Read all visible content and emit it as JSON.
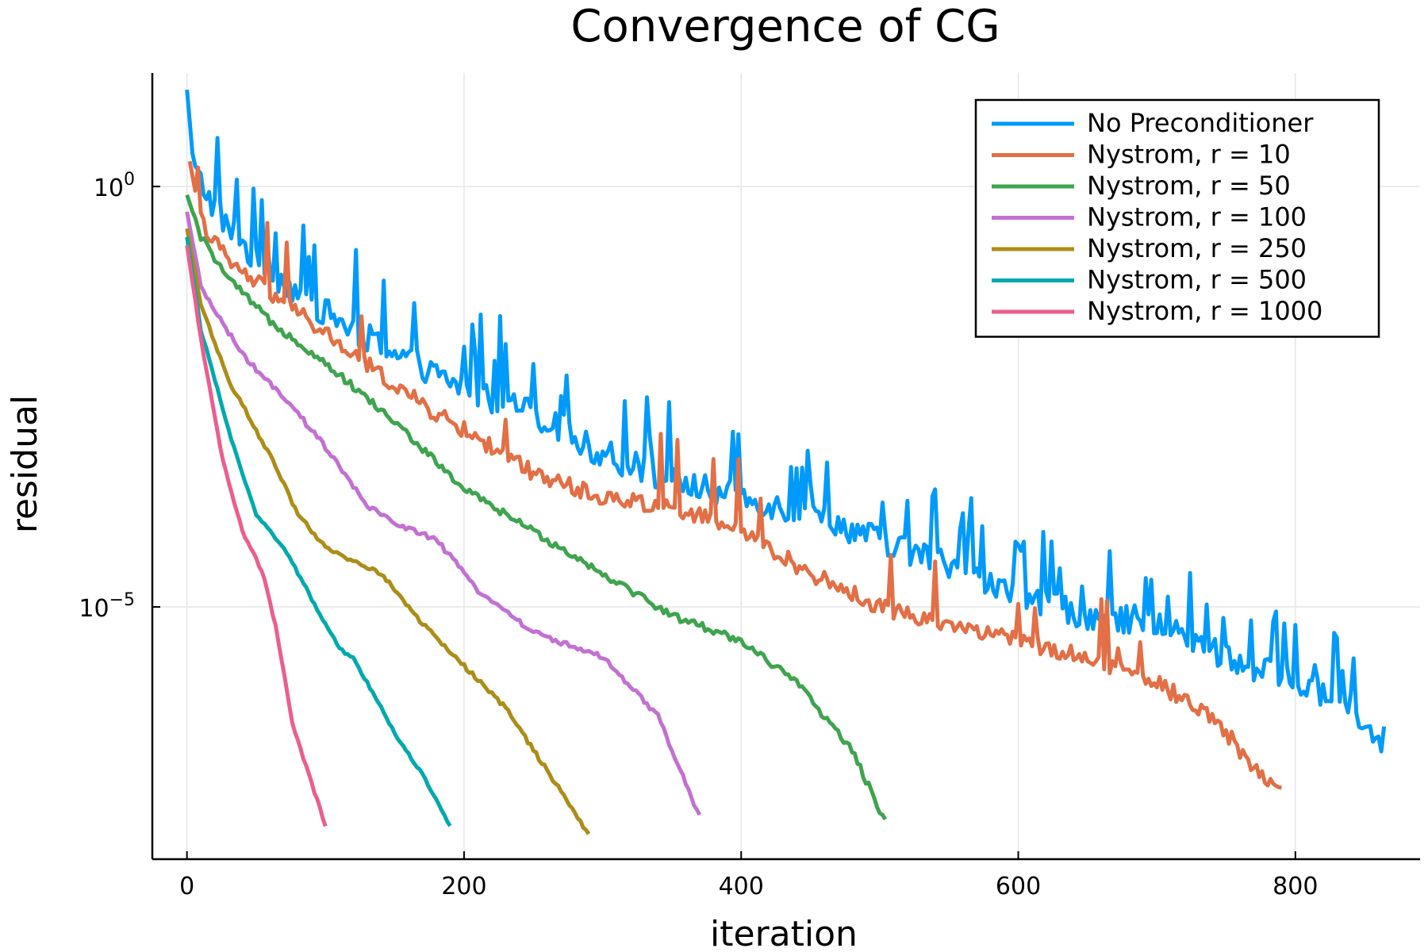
{
  "chart_data": {
    "type": "line",
    "title": "Convergence of CG",
    "xlabel": "iteration",
    "ylabel": "residual",
    "y_scale": "log10",
    "xlim": [
      -25,
      890
    ],
    "ylim_exponent": [
      -8.0,
      1.35
    ],
    "xticks": [
      0,
      200,
      400,
      600,
      800
    ],
    "xtick_labels": [
      "0",
      "200",
      "400",
      "600",
      "800"
    ],
    "yticks": [
      0,
      -5
    ],
    "ytick_labels": [
      {
        "base": "10",
        "exp": "0"
      },
      {
        "base": "10",
        "exp": "−5"
      }
    ],
    "grid": true,
    "legend_position": "top-right",
    "series": [
      {
        "name": "No Preconditioner",
        "color": "#009AFA",
        "points": [
          [
            0,
            1.15
          ],
          [
            5,
            0.2
          ],
          [
            20,
            -0.25
          ],
          [
            50,
            -0.9
          ],
          [
            100,
            -1.5
          ],
          [
            150,
            -2.0
          ],
          [
            200,
            -2.4
          ],
          [
            250,
            -2.7
          ],
          [
            300,
            -3.2
          ],
          [
            350,
            -3.5
          ],
          [
            400,
            -3.7
          ],
          [
            450,
            -3.9
          ],
          [
            500,
            -4.2
          ],
          [
            550,
            -4.5
          ],
          [
            600,
            -4.9
          ],
          [
            650,
            -5.1
          ],
          [
            700,
            -5.2
          ],
          [
            750,
            -5.6
          ],
          [
            800,
            -5.9
          ],
          [
            840,
            -6.2
          ],
          [
            865,
            -6.6
          ]
        ]
      },
      {
        "name": "Nystrom, r = 10",
        "color": "#E26F46",
        "points": [
          [
            2,
            0.3
          ],
          [
            10,
            -0.4
          ],
          [
            30,
            -0.9
          ],
          [
            80,
            -1.5
          ],
          [
            120,
            -2.0
          ],
          [
            170,
            -2.6
          ],
          [
            200,
            -2.9
          ],
          [
            250,
            -3.4
          ],
          [
            300,
            -3.7
          ],
          [
            350,
            -3.8
          ],
          [
            400,
            -4.1
          ],
          [
            450,
            -4.6
          ],
          [
            500,
            -5.0
          ],
          [
            550,
            -5.2
          ],
          [
            600,
            -5.4
          ],
          [
            650,
            -5.6
          ],
          [
            700,
            -5.9
          ],
          [
            740,
            -6.3
          ],
          [
            770,
            -6.9
          ],
          [
            790,
            -7.2
          ]
        ]
      },
      {
        "name": "Nystrom, r = 50",
        "color": "#3EA44E",
        "points": [
          [
            0,
            -0.1
          ],
          [
            10,
            -0.6
          ],
          [
            30,
            -1.1
          ],
          [
            60,
            -1.6
          ],
          [
            100,
            -2.1
          ],
          [
            150,
            -2.8
          ],
          [
            200,
            -3.6
          ],
          [
            260,
            -4.2
          ],
          [
            300,
            -4.6
          ],
          [
            350,
            -5.1
          ],
          [
            400,
            -5.4
          ],
          [
            440,
            -5.9
          ],
          [
            480,
            -6.7
          ],
          [
            505,
            -7.6
          ]
        ]
      },
      {
        "name": "Nystrom, r = 100",
        "color": "#C271D2",
        "points": [
          [
            0,
            -0.3
          ],
          [
            10,
            -1.2
          ],
          [
            40,
            -2.0
          ],
          [
            80,
            -2.7
          ],
          [
            100,
            -3.1
          ],
          [
            130,
            -3.8
          ],
          [
            150,
            -4.0
          ],
          [
            180,
            -4.2
          ],
          [
            210,
            -4.8
          ],
          [
            250,
            -5.3
          ],
          [
            300,
            -5.6
          ],
          [
            340,
            -6.3
          ],
          [
            370,
            -7.5
          ]
        ]
      },
      {
        "name": "Nystrom, r = 250",
        "color": "#AC8D18",
        "points": [
          [
            0,
            -0.5
          ],
          [
            10,
            -1.4
          ],
          [
            30,
            -2.3
          ],
          [
            60,
            -3.2
          ],
          [
            80,
            -3.9
          ],
          [
            100,
            -4.3
          ],
          [
            140,
            -4.6
          ],
          [
            170,
            -5.2
          ],
          [
            200,
            -5.7
          ],
          [
            230,
            -6.2
          ],
          [
            250,
            -6.7
          ],
          [
            270,
            -7.2
          ],
          [
            290,
            -7.7
          ]
        ]
      },
      {
        "name": "Nystrom, r = 500",
        "color": "#00A9AD",
        "points": [
          [
            0,
            -0.6
          ],
          [
            10,
            -1.7
          ],
          [
            30,
            -2.9
          ],
          [
            50,
            -3.9
          ],
          [
            70,
            -4.3
          ],
          [
            90,
            -4.9
          ],
          [
            110,
            -5.5
          ],
          [
            120,
            -5.6
          ],
          [
            130,
            -5.9
          ],
          [
            150,
            -6.5
          ],
          [
            170,
            -7.0
          ],
          [
            190,
            -7.6
          ]
        ]
      },
      {
        "name": "Nystrom, r = 1000",
        "color": "#EB5E8F",
        "points": [
          [
            0,
            -0.7
          ],
          [
            10,
            -1.8
          ],
          [
            25,
            -3.2
          ],
          [
            40,
            -4.1
          ],
          [
            55,
            -4.6
          ],
          [
            65,
            -5.3
          ],
          [
            75,
            -6.3
          ],
          [
            80,
            -6.6
          ],
          [
            90,
            -7.1
          ],
          [
            100,
            -7.6
          ]
        ]
      }
    ]
  }
}
